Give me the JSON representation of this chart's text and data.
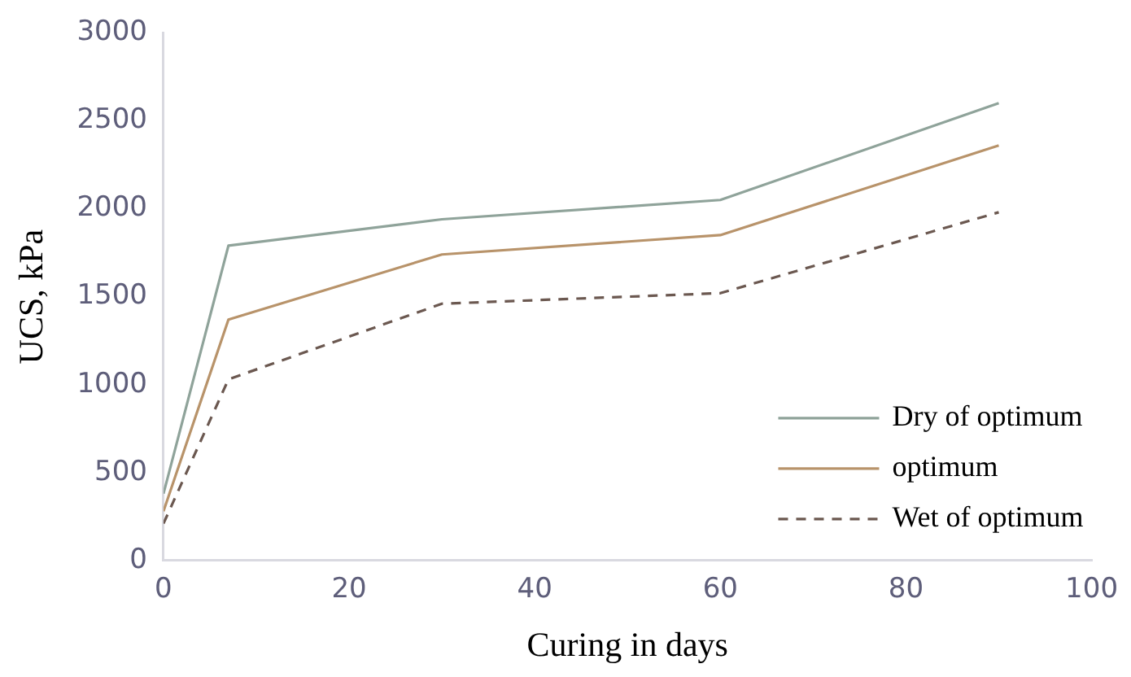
{
  "chart_data": {
    "type": "line",
    "xlabel": "Curing in days",
    "ylabel": "UCS, kPa",
    "x": [
      0,
      7,
      30,
      60,
      90
    ],
    "series": [
      {
        "name": "Dry of optimum",
        "color": "#8fa39a",
        "values": [
          380,
          1790,
          1940,
          2050,
          2600
        ]
      },
      {
        "name": "optimum",
        "color": "#b8936a",
        "values": [
          280,
          1370,
          1740,
          1850,
          2360
        ]
      },
      {
        "name": "Wet of optimum",
        "color": "#6b5850",
        "values": [
          210,
          1030,
          1460,
          1520,
          1980
        ],
        "line_style": "dashed"
      }
    ],
    "xlim": [
      0,
      100
    ],
    "xticks": [
      0,
      20,
      40,
      60,
      80,
      100
    ],
    "ylim": [
      0,
      3000
    ],
    "yticks": [
      0,
      500,
      1000,
      1500,
      2000,
      2500,
      3000
    ],
    "grid": false,
    "legend": "bottom right",
    "marker": "none"
  }
}
